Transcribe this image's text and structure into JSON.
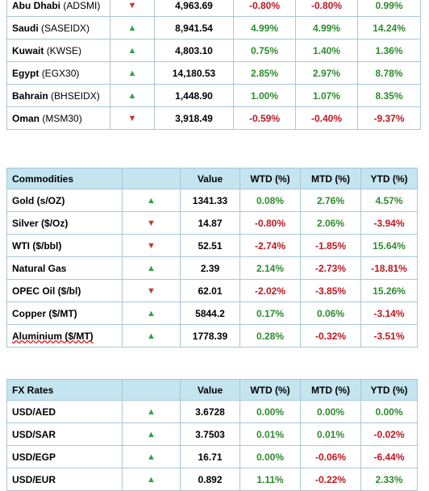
{
  "indices": {
    "rows": [
      {
        "name": "Abu Dhabi",
        "code": "(ADSMI)",
        "dir": "down",
        "value": "4,963.69",
        "wtd": "-0.80%",
        "mtd": "-0.80%",
        "ytd": "0.99%"
      },
      {
        "name": "Saudi",
        "code": "(SASEIDX)",
        "dir": "up",
        "value": "8,941.54",
        "wtd": "4.99%",
        "mtd": "4.99%",
        "ytd": "14.24%"
      },
      {
        "name": "Kuwait",
        "code": "(KWSE)",
        "dir": "up",
        "value": "4,803.10",
        "wtd": "0.75%",
        "mtd": "1.40%",
        "ytd": "1.36%"
      },
      {
        "name": "Egypt",
        "code": "(EGX30)",
        "dir": "up",
        "value": "14,180.53",
        "wtd": "2.85%",
        "mtd": "2.97%",
        "ytd": "8.78%"
      },
      {
        "name": "Bahrain",
        "code": "(BHSEIDX)",
        "dir": "up",
        "value": "1,448.90",
        "wtd": "1.00%",
        "mtd": "1.07%",
        "ytd": "8.35%"
      },
      {
        "name": "Oman",
        "code": "(MSM30)",
        "dir": "down",
        "value": "3,918.49",
        "wtd": "-0.59%",
        "mtd": "-0.40%",
        "ytd": "-9.37%"
      }
    ]
  },
  "commodities": {
    "header": {
      "title": "Commodities",
      "value": "Value",
      "wtd": "WTD (%)",
      "mtd": "MTD (%)",
      "ytd": "YTD (%)"
    },
    "rows": [
      {
        "name": "Gold (s/OZ)",
        "dir": "up",
        "value": "1341.33",
        "wtd": "0.08%",
        "mtd": "2.76%",
        "ytd": "4.57%"
      },
      {
        "name": "Silver ($/Oz)",
        "dir": "down",
        "value": "14.87",
        "wtd": "-0.80%",
        "mtd": "2.06%",
        "ytd": "-3.94%"
      },
      {
        "name": "WTI ($/bbl)",
        "dir": "down",
        "value": "52.51",
        "wtd": "-2.74%",
        "mtd": "-1.85%",
        "ytd": "15.64%"
      },
      {
        "name": "Natural Gas",
        "dir": "up",
        "value": "2.39",
        "wtd": "2.14%",
        "mtd": "-2.73%",
        "ytd": "-18.81%"
      },
      {
        "name": "OPEC Oil ($/bl)",
        "dir": "down",
        "value": "62.01",
        "wtd": "-2.02%",
        "mtd": "-3.85%",
        "ytd": "15.26%"
      },
      {
        "name": "Copper ($/MT)",
        "dir": "up",
        "value": "5844.2",
        "wtd": "0.17%",
        "mtd": "0.06%",
        "ytd": "-3.14%"
      },
      {
        "name": "Aluminium ($/MT)",
        "dir": "up",
        "value": "1778.39",
        "wtd": "0.28%",
        "mtd": "-0.32%",
        "ytd": "-3.51%"
      }
    ]
  },
  "fx": {
    "header": {
      "title": "FX Rates",
      "value": "Value",
      "wtd": "WTD (%)",
      "mtd": "MTD (%)",
      "ytd": "YTD (%)"
    },
    "rows": [
      {
        "name": "USD/AED",
        "dir": "up",
        "value": "3.6728",
        "wtd": "0.00%",
        "mtd": "0.00%",
        "ytd": "0.00%"
      },
      {
        "name": "USD/SAR",
        "dir": "up",
        "value": "3.7503",
        "wtd": "0.01%",
        "mtd": "0.01%",
        "ytd": "-0.02%"
      },
      {
        "name": "USD/EGP",
        "dir": "up",
        "value": "16.71",
        "wtd": "0.00%",
        "mtd": "-0.06%",
        "ytd": "-6.44%"
      },
      {
        "name": "USD/EUR",
        "dir": "up",
        "value": "0.892",
        "wtd": "1.11%",
        "mtd": "-0.22%",
        "ytd": "2.33%"
      }
    ]
  },
  "colors": {
    "up": "#2fa04a",
    "down": "#c0392b",
    "positive": "#2d8c2d",
    "negative": "#c0161e",
    "header_bg": "#c4e4f0",
    "border": "#a9c7d6"
  }
}
